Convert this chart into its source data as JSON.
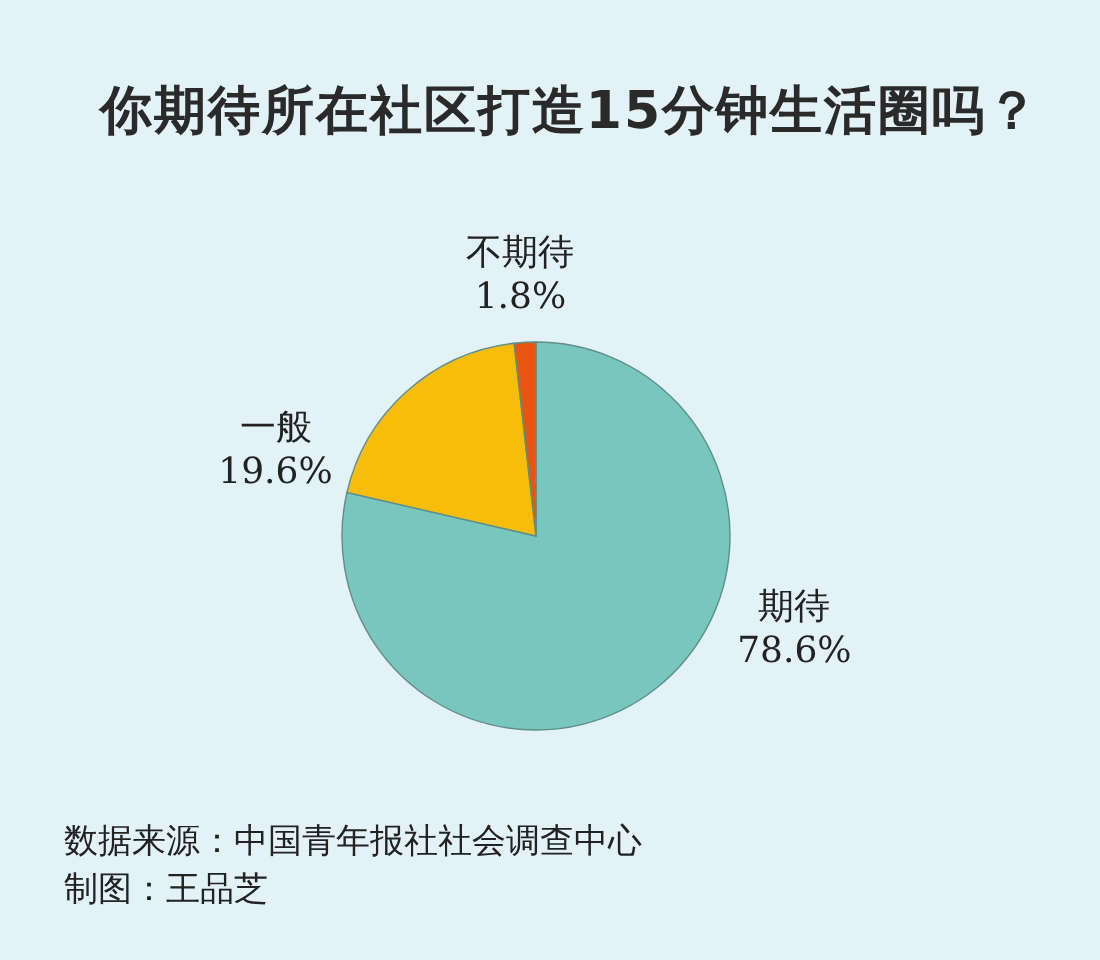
{
  "chart_data": {
    "type": "pie",
    "title": "你期待所在社区打造15分钟生活圈吗？",
    "categories": [
      "期待",
      "一般",
      "不期待"
    ],
    "values": [
      78.6,
      19.6,
      1.8
    ],
    "colors": [
      "#79c6bf",
      "#f8bc0a",
      "#e85510"
    ],
    "value_labels": [
      "78.6%",
      "19.6%",
      "1.8%"
    ],
    "annotations": [
      "数据来源：中国青年报社社会调查中心",
      "制图：王品芝"
    ]
  }
}
